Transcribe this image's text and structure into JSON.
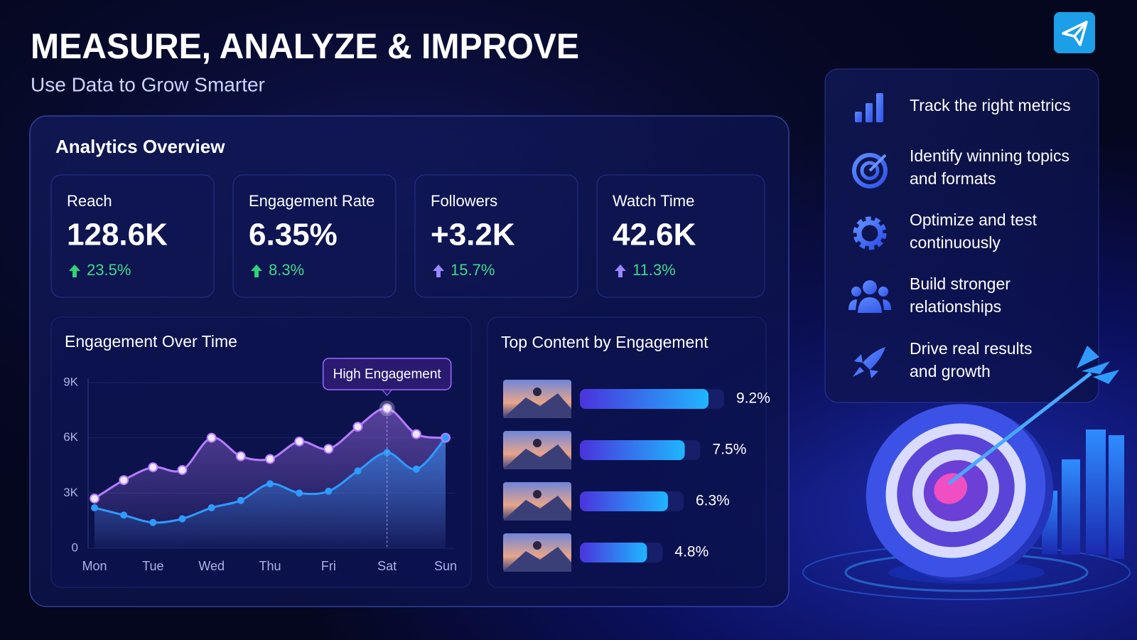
{
  "header": {
    "title": "MEASURE, ANALYZE & IMPROVE",
    "subtitle": "Use Data to Grow Smarter"
  },
  "overview": {
    "title": "Analytics Overview",
    "kpis": [
      {
        "label": "Reach",
        "value": "128.6K",
        "change": "23.5%"
      },
      {
        "label": "Engagement Rate",
        "value": "6.35%",
        "change": "8.3%"
      },
      {
        "label": "Followers",
        "value": "+3.2K",
        "change": "15.7%"
      },
      {
        "label": "Watch Time",
        "value": "42.6K",
        "change": "11.3%"
      }
    ]
  },
  "chart_data": [
    {
      "type": "line",
      "title": "Engagement Over Time",
      "categories": [
        "Mon",
        null,
        "Tue",
        null,
        "Wed",
        null,
        "Thu",
        null,
        "Fri",
        null,
        "Sat",
        null,
        "Sun"
      ],
      "series": [
        {
          "color": "#b57cff",
          "values": [
            2700,
            3700,
            4400,
            4250,
            6000,
            5000,
            4850,
            5800,
            5400,
            6600,
            7600,
            6200,
            6000
          ]
        },
        {
          "color": "#2f9bff",
          "values": [
            2200,
            1800,
            1400,
            1600,
            2200,
            2600,
            3500,
            3000,
            3100,
            4200,
            5200,
            4300,
            6000
          ]
        }
      ],
      "ylim": [
        0,
        9000
      ],
      "yticks": [
        0,
        {
          "value": 3000,
          "label": "3K"
        },
        {
          "value": 6000,
          "label": "6K"
        },
        {
          "value": 9000,
          "label": "9K"
        }
      ],
      "annotation": "High Engagement"
    },
    {
      "type": "bar",
      "title": "Top Content by Engagement",
      "categories": [
        null,
        null,
        null,
        null
      ],
      "values": [
        9.2,
        7.5,
        6.3,
        4.8
      ],
      "value_labels": [
        "9.2%",
        "7.5%",
        "6.3%",
        "4.8%"
      ],
      "color": "#1fb6ff"
    }
  ],
  "sidebar": {
    "items": [
      {
        "lines": [
          "Track the right metrics"
        ]
      },
      {
        "lines": [
          "Identify winning topics",
          "and formats"
        ]
      },
      {
        "lines": [
          "Optimize and test",
          "continuously"
        ]
      },
      {
        "lines": [
          "Build stronger",
          "relationships"
        ]
      },
      {
        "lines": [
          "Drive real results",
          "and growth"
        ]
      }
    ]
  }
}
